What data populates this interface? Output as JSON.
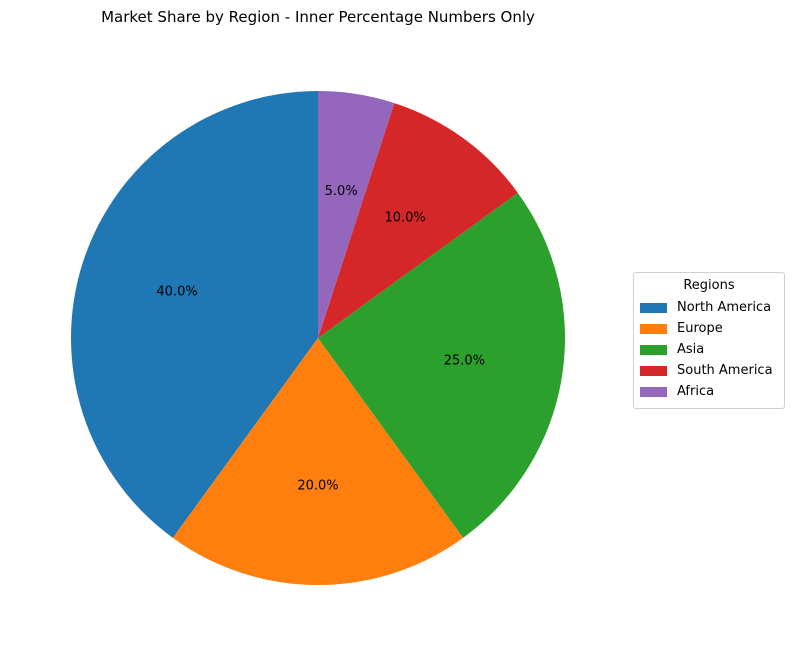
{
  "chart_data": {
    "type": "pie",
    "title": "Market Share by Region - Inner Percentage Numbers Only",
    "categories": [
      "North America",
      "Europe",
      "Asia",
      "South America",
      "Africa"
    ],
    "values": [
      40,
      20,
      25,
      10,
      5
    ],
    "labels": [
      "40.0%",
      "20.0%",
      "25.0%",
      "10.0%",
      "5.0%"
    ],
    "colors": [
      "#1f77b4",
      "#ff7f0e",
      "#2ca02c",
      "#d62728",
      "#9467bd"
    ],
    "start_angle_deg": 90,
    "direction": "counterclockwise",
    "legend": {
      "title": "Regions",
      "placement": "right"
    }
  }
}
